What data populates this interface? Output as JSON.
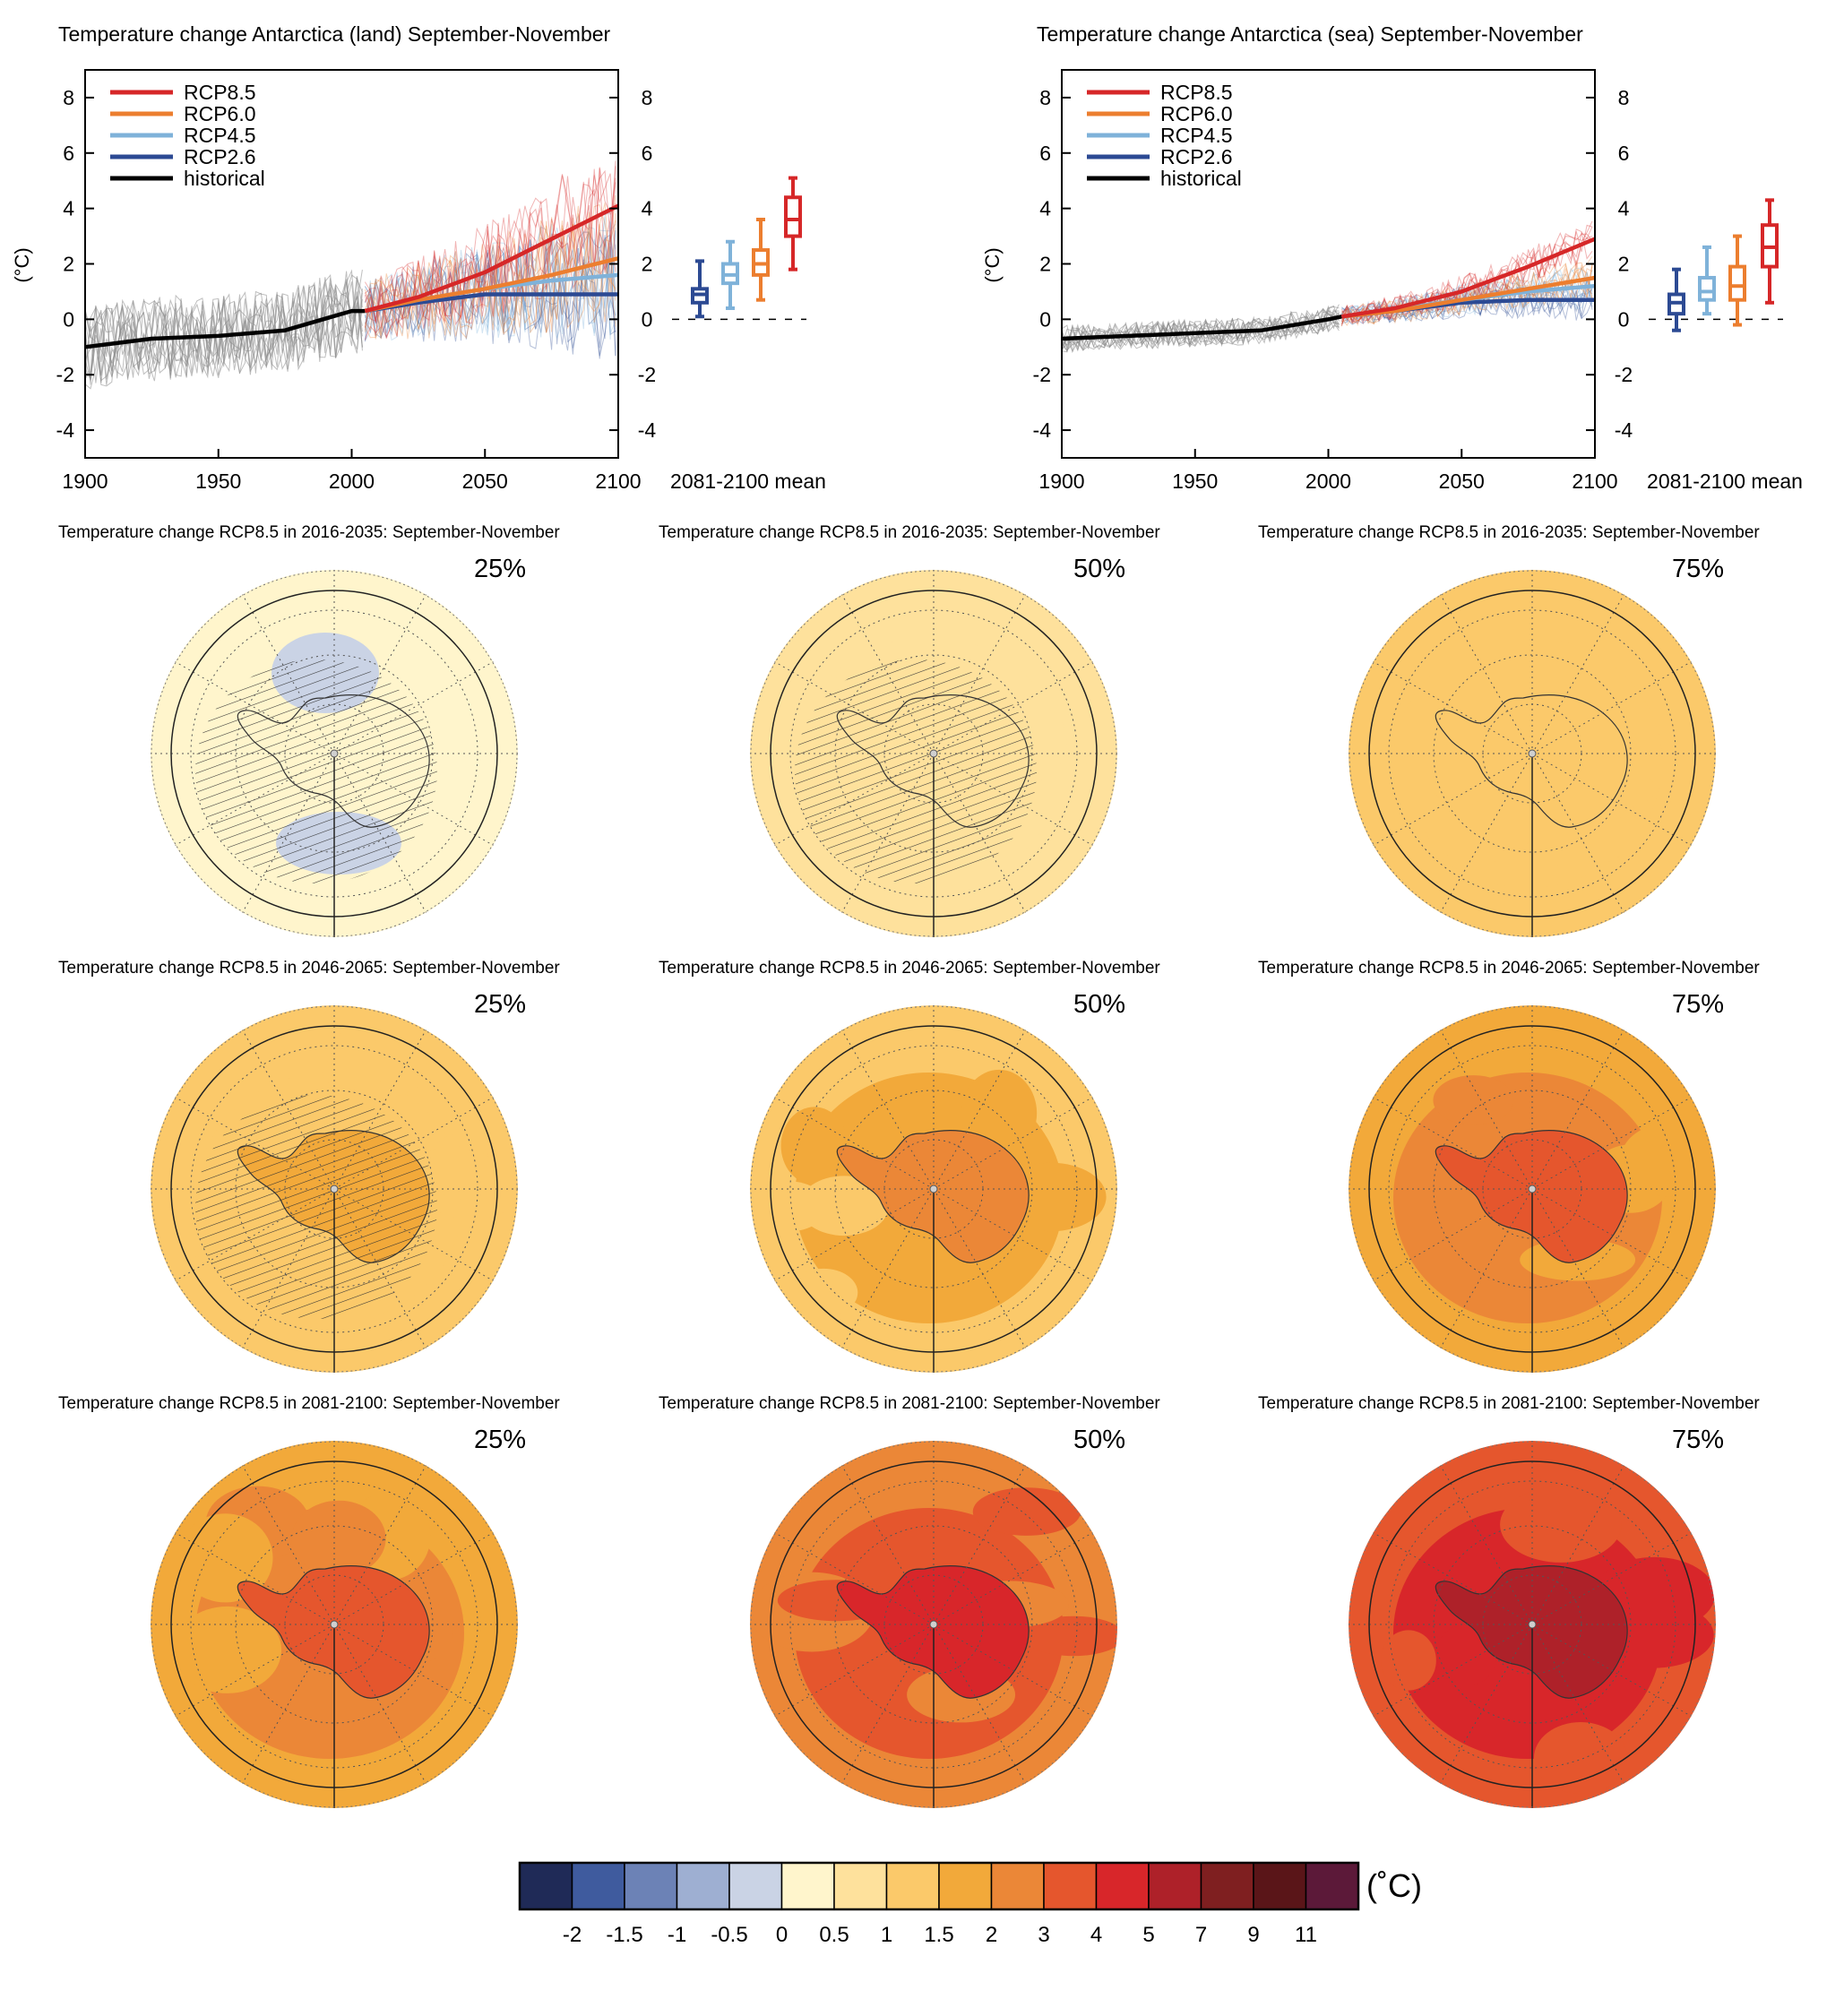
{
  "figure": {
    "scenarios": [
      {
        "key": "rcp85",
        "name": "RCP8.5",
        "color": "#d62728"
      },
      {
        "key": "rcp60",
        "name": "RCP6.0",
        "color": "#ec7e2f"
      },
      {
        "key": "rcp45",
        "name": "RCP4.5",
        "color": "#7fb2d9"
      },
      {
        "key": "rcp26",
        "name": "RCP2.6",
        "color": "#2c4a93"
      },
      {
        "key": "hist",
        "name": "historical",
        "color": "#000000"
      }
    ],
    "boxplot_label": "2081-2100 mean",
    "ylabel": "(°C)"
  },
  "chart_data": [
    {
      "type": "line",
      "title": "Temperature change Antarctica (land) September-November",
      "ylabel": "(°C)",
      "xlim": [
        1900,
        2100
      ],
      "ylim": [
        -5,
        9
      ],
      "xticks": [
        "1900",
        "1950",
        "2000",
        "2050",
        "2100"
      ],
      "yticks": [
        "-4",
        "-2",
        "0",
        "2",
        "4",
        "6",
        "8"
      ],
      "series": [
        {
          "name": "historical",
          "x": [
            1900,
            1925,
            1950,
            1975,
            2000,
            2005
          ],
          "y": [
            -1.0,
            -0.7,
            -0.6,
            -0.4,
            0.3,
            0.3
          ]
        },
        {
          "name": "RCP8.5",
          "x": [
            2005,
            2025,
            2050,
            2075,
            2100
          ],
          "y": [
            0.3,
            0.8,
            1.7,
            2.9,
            4.1
          ]
        },
        {
          "name": "RCP6.0",
          "x": [
            2005,
            2025,
            2050,
            2075,
            2100
          ],
          "y": [
            0.3,
            0.7,
            1.1,
            1.6,
            2.2
          ]
        },
        {
          "name": "RCP4.5",
          "x": [
            2005,
            2025,
            2050,
            2075,
            2100
          ],
          "y": [
            0.3,
            0.7,
            1.1,
            1.4,
            1.6
          ]
        },
        {
          "name": "RCP2.6",
          "x": [
            2005,
            2025,
            2050,
            2075,
            2100
          ],
          "y": [
            0.3,
            0.6,
            0.9,
            0.9,
            0.9
          ]
        }
      ],
      "boxplots": [
        {
          "name": "RCP2.6",
          "min": 0.1,
          "q1": 0.6,
          "median": 0.9,
          "q3": 1.1,
          "max": 2.1
        },
        {
          "name": "RCP4.5",
          "min": 0.4,
          "q1": 1.3,
          "median": 1.6,
          "q3": 2.0,
          "max": 2.8
        },
        {
          "name": "RCP6.0",
          "min": 0.7,
          "q1": 1.6,
          "median": 2.0,
          "q3": 2.5,
          "max": 3.6
        },
        {
          "name": "RCP8.5",
          "min": 1.8,
          "q1": 3.0,
          "median": 3.6,
          "q3": 4.4,
          "max": 5.1
        }
      ]
    },
    {
      "type": "line",
      "title": "Temperature change Antarctica (sea) September-November",
      "ylabel": "(°C)",
      "xlim": [
        1900,
        2100
      ],
      "ylim": [
        -5,
        9
      ],
      "xticks": [
        "1900",
        "1950",
        "2000",
        "2050",
        "2100"
      ],
      "yticks": [
        "-4",
        "-2",
        "0",
        "2",
        "4",
        "6",
        "8"
      ],
      "series": [
        {
          "name": "historical",
          "x": [
            1900,
            1925,
            1950,
            1975,
            2000,
            2005
          ],
          "y": [
            -0.7,
            -0.6,
            -0.5,
            -0.4,
            0.0,
            0.1
          ]
        },
        {
          "name": "RCP8.5",
          "x": [
            2005,
            2025,
            2050,
            2075,
            2100
          ],
          "y": [
            0.1,
            0.4,
            1.0,
            1.9,
            2.9
          ]
        },
        {
          "name": "RCP6.0",
          "x": [
            2005,
            2025,
            2050,
            2075,
            2100
          ],
          "y": [
            0.1,
            0.3,
            0.7,
            1.1,
            1.5
          ]
        },
        {
          "name": "RCP4.5",
          "x": [
            2005,
            2025,
            2050,
            2075,
            2100
          ],
          "y": [
            0.1,
            0.35,
            0.7,
            1.0,
            1.2
          ]
        },
        {
          "name": "RCP2.6",
          "x": [
            2005,
            2025,
            2050,
            2075,
            2100
          ],
          "y": [
            0.1,
            0.3,
            0.6,
            0.7,
            0.7
          ]
        }
      ],
      "boxplots": [
        {
          "name": "RCP2.6",
          "min": -0.4,
          "q1": 0.2,
          "median": 0.6,
          "q3": 0.9,
          "max": 1.8
        },
        {
          "name": "RCP4.5",
          "min": 0.2,
          "q1": 0.7,
          "median": 1.0,
          "q3": 1.5,
          "max": 2.6
        },
        {
          "name": "RCP6.0",
          "min": -0.2,
          "q1": 0.7,
          "median": 1.2,
          "q3": 1.9,
          "max": 3.0
        },
        {
          "name": "RCP8.5",
          "min": 0.6,
          "q1": 1.9,
          "median": 2.6,
          "q3": 3.4,
          "max": 4.3
        }
      ]
    },
    {
      "type": "heatmap",
      "maps": [
        {
          "title": "Temperature change RCP8.5 in 2016-2035: September-November",
          "percentile": "25%",
          "base": 0.2,
          "center": 0.4,
          "hatched": true
        },
        {
          "title": "Temperature change RCP8.5 in 2016-2035: September-November",
          "percentile": "50%",
          "base": 0.5,
          "center": 0.8,
          "hatched": true
        },
        {
          "title": "Temperature change RCP8.5 in 2016-2035: September-November",
          "percentile": "75%",
          "base": 1.0,
          "center": 1.2,
          "hatched": false
        },
        {
          "title": "Temperature change RCP8.5 in 2046-2065: September-November",
          "percentile": "25%",
          "base": 1.0,
          "center": 1.7,
          "hatched": true
        },
        {
          "title": "Temperature change RCP8.5 in 2046-2065: September-November",
          "percentile": "50%",
          "base": 1.3,
          "center": 2.5,
          "hatched": false
        },
        {
          "title": "Temperature change RCP8.5 in 2046-2065: September-November",
          "percentile": "75%",
          "base": 1.6,
          "center": 3.5,
          "hatched": false
        },
        {
          "title": "Temperature change RCP8.5 in 2081-2100: September-November",
          "percentile": "25%",
          "base": 1.6,
          "center": 3.2,
          "hatched": false
        },
        {
          "title": "Temperature change RCP8.5 in 2081-2100: September-November",
          "percentile": "50%",
          "base": 2.5,
          "center": 4.5,
          "hatched": false
        },
        {
          "title": "Temperature change RCP8.5 in 2081-2100: September-November",
          "percentile": "75%",
          "base": 3.0,
          "center": 6.0,
          "hatched": false
        }
      ]
    }
  ],
  "colorbar": {
    "unit": "(˚C)",
    "colors": [
      "#1f2a57",
      "#3f5b9e",
      "#6c82b6",
      "#9eafd2",
      "#cad3e5",
      "#fff5cc",
      "#fee19c",
      "#fbc96a",
      "#f2a93a",
      "#eb8737",
      "#e5562d",
      "#d8262a",
      "#ae2129",
      "#7f1f20",
      "#5a1518",
      "#5c1939"
    ],
    "labels": [
      "-2",
      "-1.5",
      "-1",
      "-0.5",
      "0",
      "0.5",
      "1",
      "1.5",
      "2",
      "3",
      "4",
      "5",
      "7",
      "9",
      "11"
    ],
    "bounds": [
      -2,
      -1.5,
      -1,
      -0.5,
      0,
      0.5,
      1,
      1.5,
      2,
      3,
      4,
      5,
      7,
      9,
      11
    ]
  }
}
